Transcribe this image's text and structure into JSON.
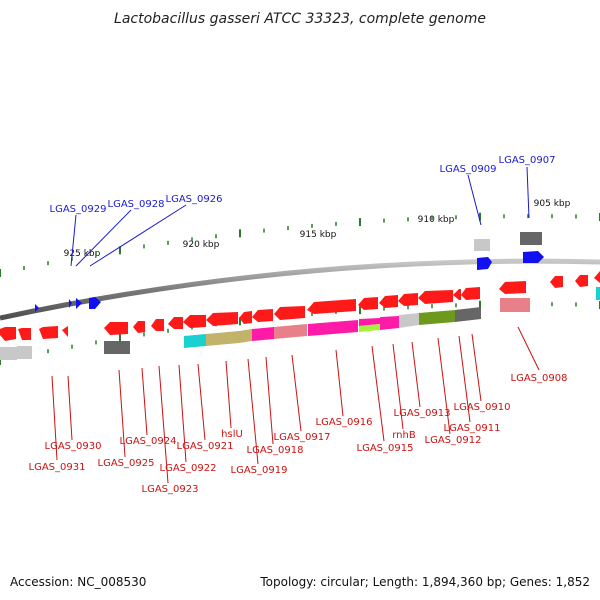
{
  "title": "Lactobacillus gasseri ATCC 33323, complete genome",
  "footer": {
    "accession": "Accession: NC_008530",
    "summary": "Topology: circular; Length: 1,894,360 bp; Genes: 1,852"
  },
  "colors": {
    "red": "#ff1a1a",
    "blue": "#1010f0",
    "dark_gray": "#666666",
    "light_gray": "#c8c8c8",
    "pink": "#e8808a",
    "magenta": "#ff1aa8",
    "khaki": "#c2b26a",
    "cyan": "#1ad0d0",
    "olive": "#6d9a1d",
    "lime": "#a8f040",
    "tick_green": "#2a7a2a"
  },
  "ruler": [
    {
      "label": "905 kbp"
    },
    {
      "label": "910 kbp"
    },
    {
      "label": "915 kbp"
    },
    {
      "label": "920 kbp"
    },
    {
      "label": "925 kbp"
    }
  ],
  "labels_top": [
    {
      "name": "LGAS_0929"
    },
    {
      "name": "LGAS_0928"
    },
    {
      "name": "LGAS_0926"
    },
    {
      "name": "LGAS_0909"
    },
    {
      "name": "LGAS_0907"
    }
  ],
  "labels_bottom": [
    {
      "name": "LGAS_0930"
    },
    {
      "name": "LGAS_0931"
    },
    {
      "name": "LGAS_0925"
    },
    {
      "name": "LGAS_0924"
    },
    {
      "name": "LGAS_0923"
    },
    {
      "name": "LGAS_0922"
    },
    {
      "name": "LGAS_0921"
    },
    {
      "name": "hslU"
    },
    {
      "name": "LGAS_0919"
    },
    {
      "name": "LGAS_0918"
    },
    {
      "name": "LGAS_0917"
    },
    {
      "name": "LGAS_0916"
    },
    {
      "name": "LGAS_0915"
    },
    {
      "name": "rnhB"
    },
    {
      "name": "LGAS_0913"
    },
    {
      "name": "LGAS_0912"
    },
    {
      "name": "LGAS_0911"
    },
    {
      "name": "LGAS_0910"
    },
    {
      "name": "LGAS_0908"
    }
  ]
}
